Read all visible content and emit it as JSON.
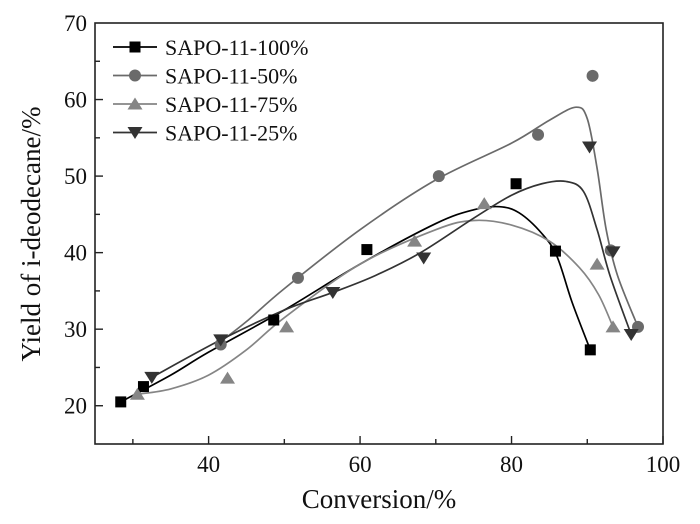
{
  "chart_data": {
    "type": "scatter",
    "xlabel": "Conversion/%",
    "ylabel": "Yield of i-deodecane/%",
    "xlim": [
      25,
      100
    ],
    "ylim": [
      15,
      70
    ],
    "xticks": [
      40,
      60,
      80,
      100
    ],
    "yticks": [
      20,
      30,
      40,
      50,
      60,
      70
    ],
    "grid": false,
    "legend_position": "top-left",
    "series": [
      {
        "name": "SAPO-11-100%",
        "marker": "square",
        "color": "#000000",
        "points": [
          [
            28.4,
            20.5
          ],
          [
            31.4,
            22.5
          ],
          [
            48.6,
            31.2
          ],
          [
            60.9,
            40.4
          ],
          [
            80.6,
            49.0
          ],
          [
            85.8,
            40.2
          ],
          [
            90.4,
            27.3
          ]
        ],
        "fit": [
          [
            28.4,
            20.5
          ],
          [
            35,
            24
          ],
          [
            40,
            27
          ],
          [
            50,
            32.5
          ],
          [
            60,
            38.5
          ],
          [
            70,
            43.8
          ],
          [
            75,
            45.6
          ],
          [
            78.4,
            46.0
          ],
          [
            81,
            45.2
          ],
          [
            84,
            42.5
          ],
          [
            86,
            39.5
          ],
          [
            88,
            33.5
          ],
          [
            90.4,
            27.3
          ]
        ]
      },
      {
        "name": "SAPO-11-50%",
        "marker": "circle",
        "color": "#6a6a6a",
        "points": [
          [
            41.6,
            28.0
          ],
          [
            51.8,
            36.7
          ],
          [
            70.4,
            50.0
          ],
          [
            83.5,
            55.4
          ],
          [
            90.7,
            63.1
          ],
          [
            93.1,
            40.3
          ],
          [
            96.7,
            30.3
          ]
        ],
        "fit": [
          [
            41.5,
            28.3
          ],
          [
            45,
            31
          ],
          [
            50,
            35.3
          ],
          [
            60,
            43
          ],
          [
            70,
            49.5
          ],
          [
            80,
            54.3
          ],
          [
            85,
            57.3
          ],
          [
            88.5,
            59.0
          ],
          [
            90,
            57.5
          ],
          [
            91.3,
            51
          ],
          [
            92.5,
            43
          ],
          [
            94,
            37
          ],
          [
            96.7,
            30.3
          ]
        ]
      },
      {
        "name": "SAPO-11-75%",
        "marker": "triangle-up",
        "color": "#858585",
        "points": [
          [
            30.6,
            21.5
          ],
          [
            42.5,
            23.6
          ],
          [
            50.3,
            30.3
          ],
          [
            67.2,
            41.5
          ],
          [
            76.4,
            46.4
          ],
          [
            91.3,
            38.5
          ],
          [
            93.4,
            30.3
          ]
        ],
        "fit": [
          [
            30.6,
            21.5
          ],
          [
            35,
            22.2
          ],
          [
            40,
            24
          ],
          [
            45,
            27.3
          ],
          [
            50,
            31.5
          ],
          [
            60,
            38.5
          ],
          [
            70,
            43
          ],
          [
            75,
            44.2
          ],
          [
            80,
            43.6
          ],
          [
            85,
            41.5
          ],
          [
            89,
            38
          ],
          [
            91.5,
            34.5
          ],
          [
            93.4,
            30.3
          ]
        ]
      },
      {
        "name": "SAPO-11-25%",
        "marker": "triangle-down",
        "color": "#333333",
        "points": [
          [
            32.5,
            23.7
          ],
          [
            41.6,
            28.6
          ],
          [
            56.4,
            34.8
          ],
          [
            68.4,
            39.3
          ],
          [
            90.3,
            53.8
          ],
          [
            93.4,
            40.1
          ],
          [
            95.8,
            29.3
          ]
        ],
        "fit": [
          [
            32.5,
            23.7
          ],
          [
            41.6,
            28.6
          ],
          [
            50,
            32.5
          ],
          [
            56.4,
            34.8
          ],
          [
            62,
            37
          ],
          [
            68,
            40
          ],
          [
            75,
            44.5
          ],
          [
            80,
            47.5
          ],
          [
            84,
            49
          ],
          [
            87.2,
            49.3
          ],
          [
            89.5,
            48
          ],
          [
            91.3,
            43
          ],
          [
            93,
            37
          ],
          [
            95.8,
            29.3
          ]
        ]
      }
    ]
  }
}
